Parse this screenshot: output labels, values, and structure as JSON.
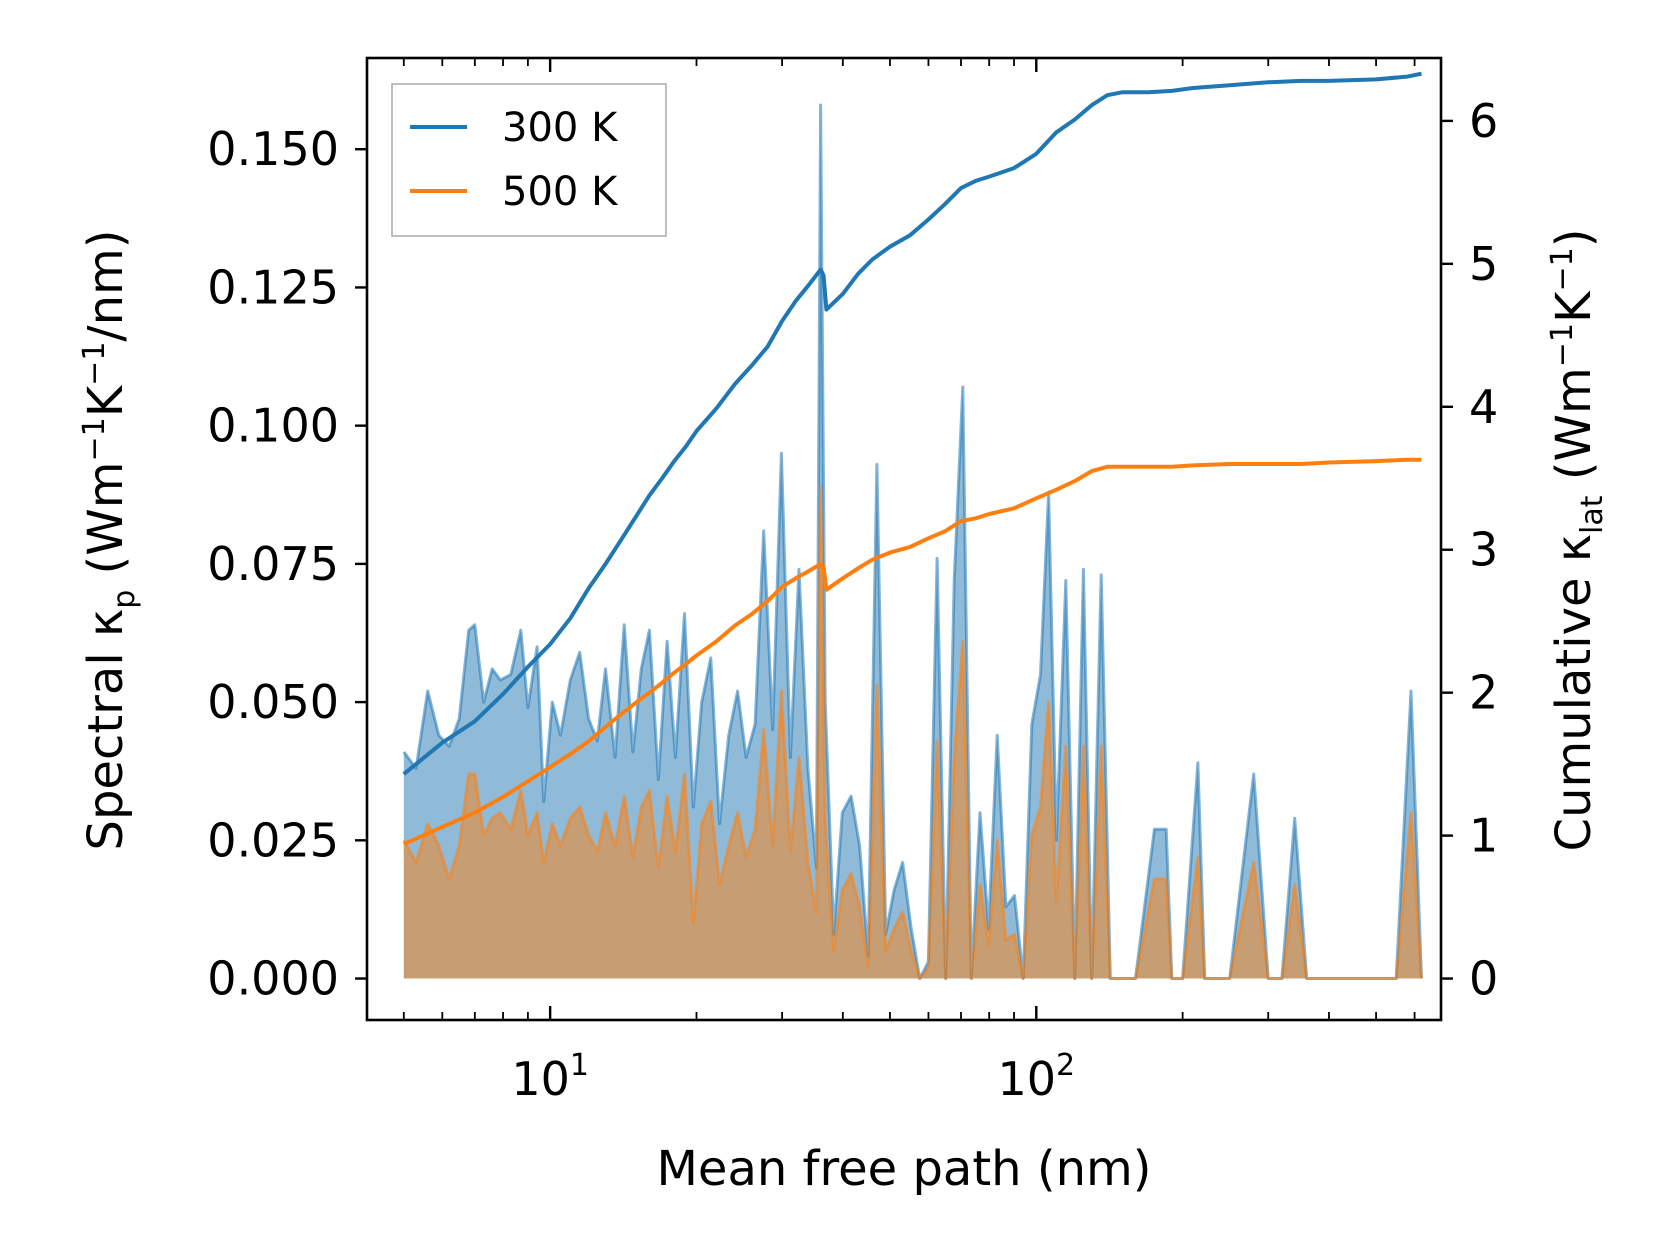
{
  "chart_data": {
    "type": "line",
    "xscale": "log",
    "xlabel": "Mean free path (nm)",
    "xlim": [
      4.2,
      680
    ],
    "xticks": [
      {
        "value": 10,
        "base": "10",
        "exp": "1"
      },
      {
        "value": 100,
        "base": "10",
        "exp": "2"
      }
    ],
    "y_left": {
      "label_parts": {
        "pre": "Spectral κ",
        "sub": "p",
        "mid": " (Wm",
        "sup1": "−1",
        "mid2": "K",
        "sup2": "−1",
        "post": "/nm)"
      },
      "lim": [
        -0.0075,
        0.1665
      ],
      "ticks": [
        {
          "value": 0.0,
          "label": "0.000"
        },
        {
          "value": 0.025,
          "label": "0.025"
        },
        {
          "value": 0.05,
          "label": "0.050"
        },
        {
          "value": 0.075,
          "label": "0.075"
        },
        {
          "value": 0.1,
          "label": "0.100"
        },
        {
          "value": 0.125,
          "label": "0.125"
        },
        {
          "value": 0.15,
          "label": "0.150"
        }
      ]
    },
    "y_right": {
      "label_parts": {
        "pre": "Cumulative κ",
        "sub": "lat",
        "mid": " (Wm",
        "sup1": "−1",
        "mid2": "K",
        "sup2": "−1",
        "post": ")"
      },
      "lim": [
        -0.29,
        6.44
      ],
      "ticks": [
        {
          "value": 0,
          "label": "0"
        },
        {
          "value": 1,
          "label": "1"
        },
        {
          "value": 2,
          "label": "2"
        },
        {
          "value": 3,
          "label": "3"
        },
        {
          "value": 4,
          "label": "4"
        },
        {
          "value": 5,
          "label": "5"
        },
        {
          "value": 6,
          "label": "6"
        }
      ]
    },
    "legend": {
      "position": "top-left",
      "entries": [
        "300 K",
        "500 K"
      ]
    },
    "series": [
      {
        "name": "300 K",
        "color": "#1f77b4",
        "fill_color": "#1f77b4",
        "spectral": {
          "x": [
            5,
            5.3,
            5.6,
            5.9,
            6.2,
            6.5,
            6.8,
            7.0,
            7.3,
            7.6,
            7.9,
            8.3,
            8.7,
            9.0,
            9.4,
            9.7,
            10.1,
            10.5,
            11.0,
            11.5,
            12.0,
            12.5,
            13.0,
            13.6,
            14.2,
            14.8,
            15.4,
            16.0,
            16.7,
            17.4,
            18.1,
            18.9,
            19.7,
            20.5,
            21.4,
            22.3,
            23.3,
            24.3,
            25.3,
            26.4,
            27.5,
            28.7,
            29.9,
            31.2,
            32.5,
            33.9,
            35.3,
            36.0,
            36.8,
            38.3,
            39.9,
            41.6,
            43.3,
            45.1,
            47.0,
            49.0,
            51.0,
            53.1,
            55.3,
            57.6,
            60.0,
            62.5,
            65.1,
            67.8,
            70.6,
            73.5,
            76.6,
            79.8,
            83.1,
            86.6,
            90.2,
            94.0,
            97.9,
            102,
            106,
            110,
            115,
            120,
            125,
            130,
            136,
            142,
            150,
            160,
            175,
            185,
            190,
            200,
            215,
            222,
            230,
            250,
            280,
            300,
            320,
            340,
            360,
            380,
            420,
            480,
            550,
            590,
            620
          ],
          "y": [
            0.041,
            0.038,
            0.052,
            0.044,
            0.042,
            0.047,
            0.063,
            0.064,
            0.05,
            0.056,
            0.054,
            0.055,
            0.063,
            0.049,
            0.06,
            0.032,
            0.05,
            0.044,
            0.054,
            0.059,
            0.047,
            0.043,
            0.056,
            0.04,
            0.064,
            0.041,
            0.056,
            0.063,
            0.036,
            0.061,
            0.04,
            0.066,
            0.031,
            0.05,
            0.058,
            0.028,
            0.044,
            0.052,
            0.04,
            0.046,
            0.081,
            0.045,
            0.095,
            0.04,
            0.074,
            0.038,
            0.02,
            0.158,
            0.05,
            0.008,
            0.03,
            0.033,
            0.024,
            0.004,
            0.093,
            0.008,
            0.016,
            0.021,
            0.009,
            0.0,
            0.003,
            0.076,
            0.0,
            0.072,
            0.107,
            0.0,
            0.03,
            0.009,
            0.044,
            0.013,
            0.015,
            0.0,
            0.046,
            0.055,
            0.088,
            0.025,
            0.072,
            0.0,
            0.074,
            0.0,
            0.073,
            0.0,
            0.0,
            0.0,
            0.027,
            0.027,
            0.0,
            0.0,
            0.039,
            0.0,
            0.0,
            0.0,
            0.037,
            0.0,
            0.0,
            0.029,
            0.0,
            0.0,
            0.0,
            0.0,
            0.0,
            0.052,
            0.0
          ]
        },
        "cumulative": {
          "x": [
            5,
            6,
            7,
            8,
            9,
            10,
            11,
            12,
            13,
            14,
            15,
            16,
            17,
            18,
            19,
            20,
            22,
            24,
            26,
            28,
            30,
            32,
            34,
            36,
            36.5,
            37,
            40,
            43,
            46,
            50,
            55,
            60,
            65,
            70,
            75,
            80,
            90,
            100,
            110,
            120,
            130,
            140,
            150,
            170,
            190,
            210,
            250,
            300,
            350,
            400,
            500,
            580,
            620
          ],
          "y": [
            1.43,
            1.65,
            1.8,
            1.99,
            2.18,
            2.34,
            2.52,
            2.73,
            2.9,
            3.07,
            3.23,
            3.38,
            3.5,
            3.62,
            3.72,
            3.83,
            3.99,
            4.16,
            4.29,
            4.42,
            4.6,
            4.74,
            4.85,
            4.96,
            4.92,
            4.68,
            4.79,
            4.93,
            5.03,
            5.12,
            5.2,
            5.31,
            5.42,
            5.53,
            5.58,
            5.61,
            5.67,
            5.77,
            5.92,
            6.01,
            6.11,
            6.18,
            6.2,
            6.2,
            6.21,
            6.23,
            6.25,
            6.27,
            6.28,
            6.28,
            6.29,
            6.31,
            6.33
          ]
        }
      },
      {
        "name": "500 K",
        "color": "#ff7f0e",
        "fill_color": "#ff7f0e",
        "spectral": {
          "x": [
            5,
            5.3,
            5.6,
            5.9,
            6.2,
            6.5,
            6.8,
            7.0,
            7.3,
            7.6,
            7.9,
            8.3,
            8.7,
            9.0,
            9.4,
            9.7,
            10.1,
            10.5,
            11.0,
            11.5,
            12.0,
            12.5,
            13.0,
            13.6,
            14.2,
            14.8,
            15.4,
            16.0,
            16.7,
            17.4,
            18.1,
            18.9,
            19.7,
            20.5,
            21.4,
            22.3,
            23.3,
            24.3,
            25.3,
            26.4,
            27.5,
            28.7,
            29.9,
            31.2,
            32.5,
            33.9,
            35.3,
            36.0,
            36.8,
            38.3,
            39.9,
            41.6,
            43.3,
            45.1,
            47.0,
            49.0,
            51.0,
            53.1,
            55.3,
            57.6,
            60.0,
            62.5,
            65.1,
            67.8,
            70.6,
            73.5,
            76.6,
            79.8,
            83.1,
            86.6,
            90.2,
            94.0,
            97.9,
            102,
            106,
            110,
            115,
            120,
            125,
            130,
            136,
            142,
            150,
            160,
            175,
            185,
            190,
            200,
            215,
            222,
            230,
            250,
            280,
            300,
            320,
            340,
            360,
            380,
            420,
            480,
            550,
            590,
            620
          ],
          "y": [
            0.025,
            0.021,
            0.028,
            0.024,
            0.018,
            0.024,
            0.037,
            0.037,
            0.026,
            0.029,
            0.03,
            0.027,
            0.034,
            0.026,
            0.03,
            0.021,
            0.028,
            0.024,
            0.029,
            0.031,
            0.026,
            0.023,
            0.03,
            0.024,
            0.033,
            0.022,
            0.031,
            0.034,
            0.02,
            0.033,
            0.023,
            0.037,
            0.01,
            0.028,
            0.032,
            0.017,
            0.024,
            0.03,
            0.022,
            0.027,
            0.045,
            0.024,
            0.052,
            0.023,
            0.04,
            0.021,
            0.012,
            0.089,
            0.028,
            0.005,
            0.016,
            0.019,
            0.013,
            0.002,
            0.053,
            0.005,
            0.009,
            0.012,
            0.005,
            0.0,
            0.002,
            0.043,
            0.0,
            0.04,
            0.061,
            0.0,
            0.017,
            0.006,
            0.025,
            0.007,
            0.008,
            0.0,
            0.026,
            0.031,
            0.05,
            0.014,
            0.042,
            0.0,
            0.042,
            0.0,
            0.042,
            0.0,
            0.0,
            0.0,
            0.018,
            0.018,
            0.0,
            0.0,
            0.022,
            0.0,
            0.0,
            0.0,
            0.021,
            0.0,
            0.0,
            0.017,
            0.0,
            0.0,
            0.0,
            0.0,
            0.0,
            0.03,
            0.0
          ]
        },
        "cumulative": {
          "x": [
            5,
            6,
            7,
            8,
            9,
            10,
            11,
            12,
            13,
            14,
            15,
            16,
            17,
            18,
            19,
            20,
            22,
            24,
            26,
            28,
            30,
            32,
            34,
            36,
            36.5,
            37,
            40,
            43,
            46,
            50,
            55,
            60,
            65,
            70,
            75,
            80,
            90,
            100,
            110,
            120,
            130,
            140,
            150,
            170,
            190,
            210,
            250,
            300,
            350,
            400,
            500,
            580,
            620
          ],
          "y": [
            0.94,
            1.06,
            1.16,
            1.27,
            1.38,
            1.48,
            1.57,
            1.66,
            1.76,
            1.85,
            1.93,
            2.0,
            2.07,
            2.14,
            2.2,
            2.26,
            2.36,
            2.47,
            2.55,
            2.64,
            2.74,
            2.8,
            2.85,
            2.9,
            2.88,
            2.72,
            2.8,
            2.87,
            2.93,
            2.98,
            3.02,
            3.08,
            3.13,
            3.2,
            3.22,
            3.25,
            3.29,
            3.36,
            3.42,
            3.48,
            3.55,
            3.58,
            3.58,
            3.58,
            3.58,
            3.59,
            3.6,
            3.6,
            3.6,
            3.61,
            3.62,
            3.63,
            3.63
          ]
        }
      }
    ]
  }
}
